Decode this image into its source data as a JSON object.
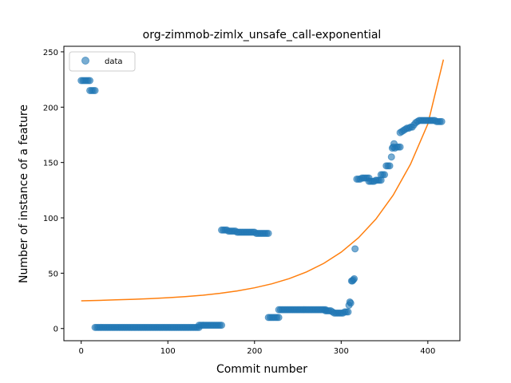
{
  "chart_data": {
    "type": "scatter",
    "title": "org-zimmob-zimlx_unsafe_call-exponential",
    "xlabel": "Commit number",
    "ylabel": "Number of instance of a feature",
    "xlim": [
      -20,
      437
    ],
    "ylim": [
      -11,
      255
    ],
    "xticks": [
      0,
      100,
      200,
      300,
      400
    ],
    "yticks": [
      0,
      50,
      100,
      150,
      200,
      250
    ],
    "grid": false,
    "legend": {
      "placement": "top-left",
      "entries": [
        "data"
      ]
    },
    "colors": {
      "data": "#1f77b4",
      "fit": "#ff7f0e"
    },
    "series": [
      {
        "name": "data",
        "kind": "scatter",
        "points": [
          [
            0,
            224
          ],
          [
            2,
            224
          ],
          [
            4,
            224
          ],
          [
            6,
            224
          ],
          [
            8,
            224
          ],
          [
            10,
            224
          ],
          [
            10,
            215
          ],
          [
            12,
            215
          ],
          [
            14,
            215
          ],
          [
            16,
            215
          ],
          [
            16,
            1
          ],
          [
            18,
            1
          ],
          [
            20,
            1
          ],
          [
            22,
            1
          ],
          [
            24,
            1
          ],
          [
            26,
            1
          ],
          [
            28,
            1
          ],
          [
            30,
            1
          ],
          [
            32,
            1
          ],
          [
            34,
            1
          ],
          [
            36,
            1
          ],
          [
            38,
            1
          ],
          [
            40,
            1
          ],
          [
            42,
            1
          ],
          [
            44,
            1
          ],
          [
            46,
            1
          ],
          [
            48,
            1
          ],
          [
            50,
            1
          ],
          [
            52,
            1
          ],
          [
            54,
            1
          ],
          [
            56,
            1
          ],
          [
            58,
            1
          ],
          [
            60,
            1
          ],
          [
            62,
            1
          ],
          [
            64,
            1
          ],
          [
            66,
            1
          ],
          [
            68,
            1
          ],
          [
            70,
            1
          ],
          [
            72,
            1
          ],
          [
            74,
            1
          ],
          [
            76,
            1
          ],
          [
            78,
            1
          ],
          [
            80,
            1
          ],
          [
            82,
            1
          ],
          [
            84,
            1
          ],
          [
            86,
            1
          ],
          [
            88,
            1
          ],
          [
            90,
            1
          ],
          [
            92,
            1
          ],
          [
            94,
            1
          ],
          [
            96,
            1
          ],
          [
            98,
            1
          ],
          [
            100,
            1
          ],
          [
            102,
            1
          ],
          [
            104,
            1
          ],
          [
            106,
            1
          ],
          [
            108,
            1
          ],
          [
            110,
            1
          ],
          [
            112,
            1
          ],
          [
            114,
            1
          ],
          [
            116,
            1
          ],
          [
            118,
            1
          ],
          [
            120,
            1
          ],
          [
            122,
            1
          ],
          [
            124,
            1
          ],
          [
            126,
            1
          ],
          [
            128,
            1
          ],
          [
            130,
            1
          ],
          [
            132,
            1
          ],
          [
            134,
            1
          ],
          [
            136,
            1
          ],
          [
            136,
            3
          ],
          [
            138,
            3
          ],
          [
            140,
            3
          ],
          [
            142,
            3
          ],
          [
            144,
            3
          ],
          [
            146,
            3
          ],
          [
            148,
            3
          ],
          [
            150,
            3
          ],
          [
            152,
            3
          ],
          [
            154,
            3
          ],
          [
            156,
            3
          ],
          [
            158,
            3
          ],
          [
            160,
            3
          ],
          [
            162,
            3
          ],
          [
            162,
            89
          ],
          [
            164,
            89
          ],
          [
            166,
            89
          ],
          [
            168,
            89
          ],
          [
            170,
            88
          ],
          [
            172,
            88
          ],
          [
            174,
            88
          ],
          [
            176,
            88
          ],
          [
            178,
            88
          ],
          [
            180,
            87
          ],
          [
            182,
            87
          ],
          [
            184,
            87
          ],
          [
            186,
            87
          ],
          [
            188,
            87
          ],
          [
            190,
            87
          ],
          [
            192,
            87
          ],
          [
            194,
            87
          ],
          [
            196,
            87
          ],
          [
            198,
            87
          ],
          [
            200,
            87
          ],
          [
            202,
            86
          ],
          [
            204,
            86
          ],
          [
            206,
            86
          ],
          [
            208,
            86
          ],
          [
            210,
            86
          ],
          [
            212,
            86
          ],
          [
            214,
            86
          ],
          [
            216,
            86
          ],
          [
            216,
            10
          ],
          [
            218,
            10
          ],
          [
            220,
            10
          ],
          [
            222,
            10
          ],
          [
            224,
            10
          ],
          [
            226,
            10
          ],
          [
            228,
            10
          ],
          [
            228,
            17
          ],
          [
            230,
            17
          ],
          [
            232,
            17
          ],
          [
            234,
            17
          ],
          [
            236,
            17
          ],
          [
            238,
            17
          ],
          [
            240,
            17
          ],
          [
            242,
            17
          ],
          [
            244,
            17
          ],
          [
            246,
            17
          ],
          [
            248,
            17
          ],
          [
            250,
            17
          ],
          [
            252,
            17
          ],
          [
            254,
            17
          ],
          [
            256,
            17
          ],
          [
            258,
            17
          ],
          [
            260,
            17
          ],
          [
            262,
            17
          ],
          [
            264,
            17
          ],
          [
            266,
            17
          ],
          [
            268,
            17
          ],
          [
            270,
            17
          ],
          [
            272,
            17
          ],
          [
            274,
            17
          ],
          [
            276,
            17
          ],
          [
            278,
            17
          ],
          [
            280,
            17
          ],
          [
            282,
            17
          ],
          [
            282,
            16
          ],
          [
            284,
            16
          ],
          [
            286,
            16
          ],
          [
            288,
            16
          ],
          [
            290,
            15
          ],
          [
            292,
            14
          ],
          [
            294,
            14
          ],
          [
            296,
            14
          ],
          [
            298,
            14
          ],
          [
            300,
            14
          ],
          [
            302,
            14
          ],
          [
            304,
            15
          ],
          [
            306,
            15
          ],
          [
            308,
            15
          ],
          [
            309,
            21
          ],
          [
            310,
            24
          ],
          [
            311,
            23
          ],
          [
            312,
            43
          ],
          [
            313,
            43
          ],
          [
            314,
            44
          ],
          [
            315,
            45
          ],
          [
            316,
            72
          ],
          [
            318,
            135
          ],
          [
            320,
            135
          ],
          [
            322,
            135
          ],
          [
            324,
            136
          ],
          [
            326,
            136
          ],
          [
            328,
            136
          ],
          [
            330,
            136
          ],
          [
            332,
            136
          ],
          [
            332,
            133
          ],
          [
            334,
            133
          ],
          [
            336,
            133
          ],
          [
            338,
            133
          ],
          [
            340,
            134
          ],
          [
            342,
            134
          ],
          [
            344,
            134
          ],
          [
            346,
            134
          ],
          [
            346,
            139
          ],
          [
            348,
            139
          ],
          [
            350,
            139
          ],
          [
            352,
            147
          ],
          [
            354,
            147
          ],
          [
            356,
            147
          ],
          [
            358,
            155
          ],
          [
            359,
            163
          ],
          [
            360,
            164
          ],
          [
            361,
            167
          ],
          [
            362,
            163
          ],
          [
            364,
            164
          ],
          [
            366,
            164
          ],
          [
            368,
            164
          ],
          [
            368,
            177
          ],
          [
            370,
            178
          ],
          [
            372,
            179
          ],
          [
            374,
            180
          ],
          [
            376,
            181
          ],
          [
            378,
            181
          ],
          [
            380,
            182
          ],
          [
            382,
            182
          ],
          [
            384,
            184
          ],
          [
            386,
            186
          ],
          [
            388,
            187
          ],
          [
            390,
            188
          ],
          [
            392,
            188
          ],
          [
            394,
            188
          ],
          [
            396,
            188
          ],
          [
            398,
            188
          ],
          [
            400,
            188
          ],
          [
            402,
            188
          ],
          [
            404,
            188
          ],
          [
            406,
            188
          ],
          [
            408,
            188
          ],
          [
            410,
            187
          ],
          [
            412,
            187
          ],
          [
            414,
            187
          ],
          [
            416,
            187
          ]
        ]
      },
      {
        "kind": "line",
        "model": "exponential",
        "points": [
          [
            0,
            25.0
          ],
          [
            20,
            25.4
          ],
          [
            40,
            25.9
          ],
          [
            60,
            26.4
          ],
          [
            80,
            27.0
          ],
          [
            100,
            27.8
          ],
          [
            120,
            28.8
          ],
          [
            140,
            30.1
          ],
          [
            160,
            31.8
          ],
          [
            180,
            34.0
          ],
          [
            200,
            36.8
          ],
          [
            220,
            40.4
          ],
          [
            240,
            45.1
          ],
          [
            260,
            51.1
          ],
          [
            280,
            58.9
          ],
          [
            300,
            69.0
          ],
          [
            320,
            82.0
          ],
          [
            340,
            98.8
          ],
          [
            360,
            120.5
          ],
          [
            380,
            148.5
          ],
          [
            400,
            184.8
          ],
          [
            418,
            243.0
          ]
        ]
      }
    ]
  }
}
